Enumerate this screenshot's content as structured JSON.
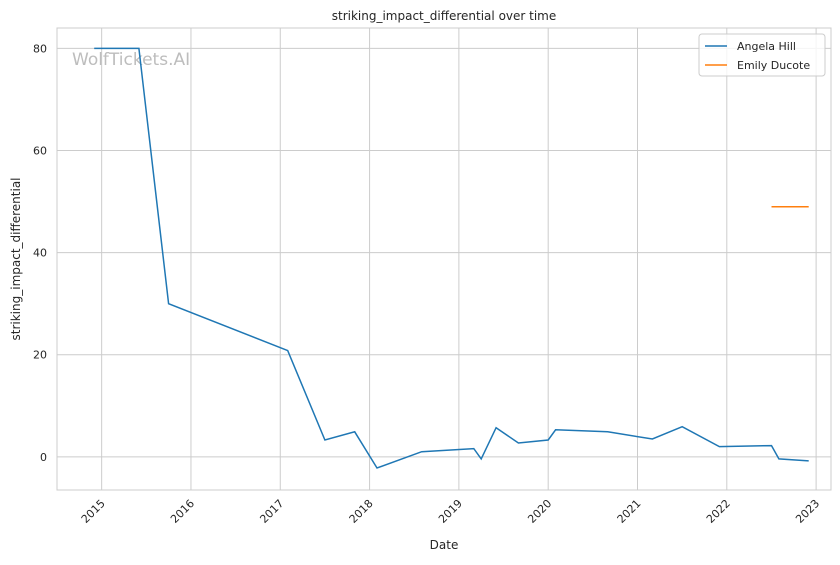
{
  "chart_data": {
    "type": "line",
    "title": "striking_impact_differential over time",
    "xlabel": "Date",
    "ylabel": "striking_impact_differential",
    "watermark": "WolfTickets.AI",
    "xlim": [
      "2014-07",
      "2023-03"
    ],
    "ylim": [
      -6.5,
      84
    ],
    "x_ticks": [
      "2015",
      "2016",
      "2017",
      "2018",
      "2019",
      "2020",
      "2021",
      "2022",
      "2023"
    ],
    "y_ticks": [
      0,
      20,
      40,
      60,
      80
    ],
    "grid": true,
    "legend_position": "top-right",
    "series": [
      {
        "name": "Angela Hill",
        "color": "#1f77b4",
        "points": [
          [
            "2014-12",
            80
          ],
          [
            "2015-06",
            80
          ],
          [
            "2015-10",
            30
          ],
          [
            "2017-02",
            20.8
          ],
          [
            "2017-07",
            3.3
          ],
          [
            "2017-11",
            4.9
          ],
          [
            "2018-02",
            -2.2
          ],
          [
            "2018-08",
            1.0
          ],
          [
            "2019-03",
            1.6
          ],
          [
            "2019-04",
            -0.4
          ],
          [
            "2019-06",
            5.7
          ],
          [
            "2019-09",
            2.7
          ],
          [
            "2020-01",
            3.3
          ],
          [
            "2020-02",
            5.3
          ],
          [
            "2020-09",
            4.9
          ],
          [
            "2021-03",
            3.5
          ],
          [
            "2021-07",
            5.9
          ],
          [
            "2021-12",
            2.0
          ],
          [
            "2022-07",
            2.2
          ],
          [
            "2022-08",
            -0.4
          ],
          [
            "2022-12",
            -0.8
          ]
        ]
      },
      {
        "name": "Emily Ducote",
        "color": "#ff7f0e",
        "points": [
          [
            "2022-07",
            49
          ],
          [
            "2022-12",
            49
          ]
        ]
      }
    ]
  }
}
